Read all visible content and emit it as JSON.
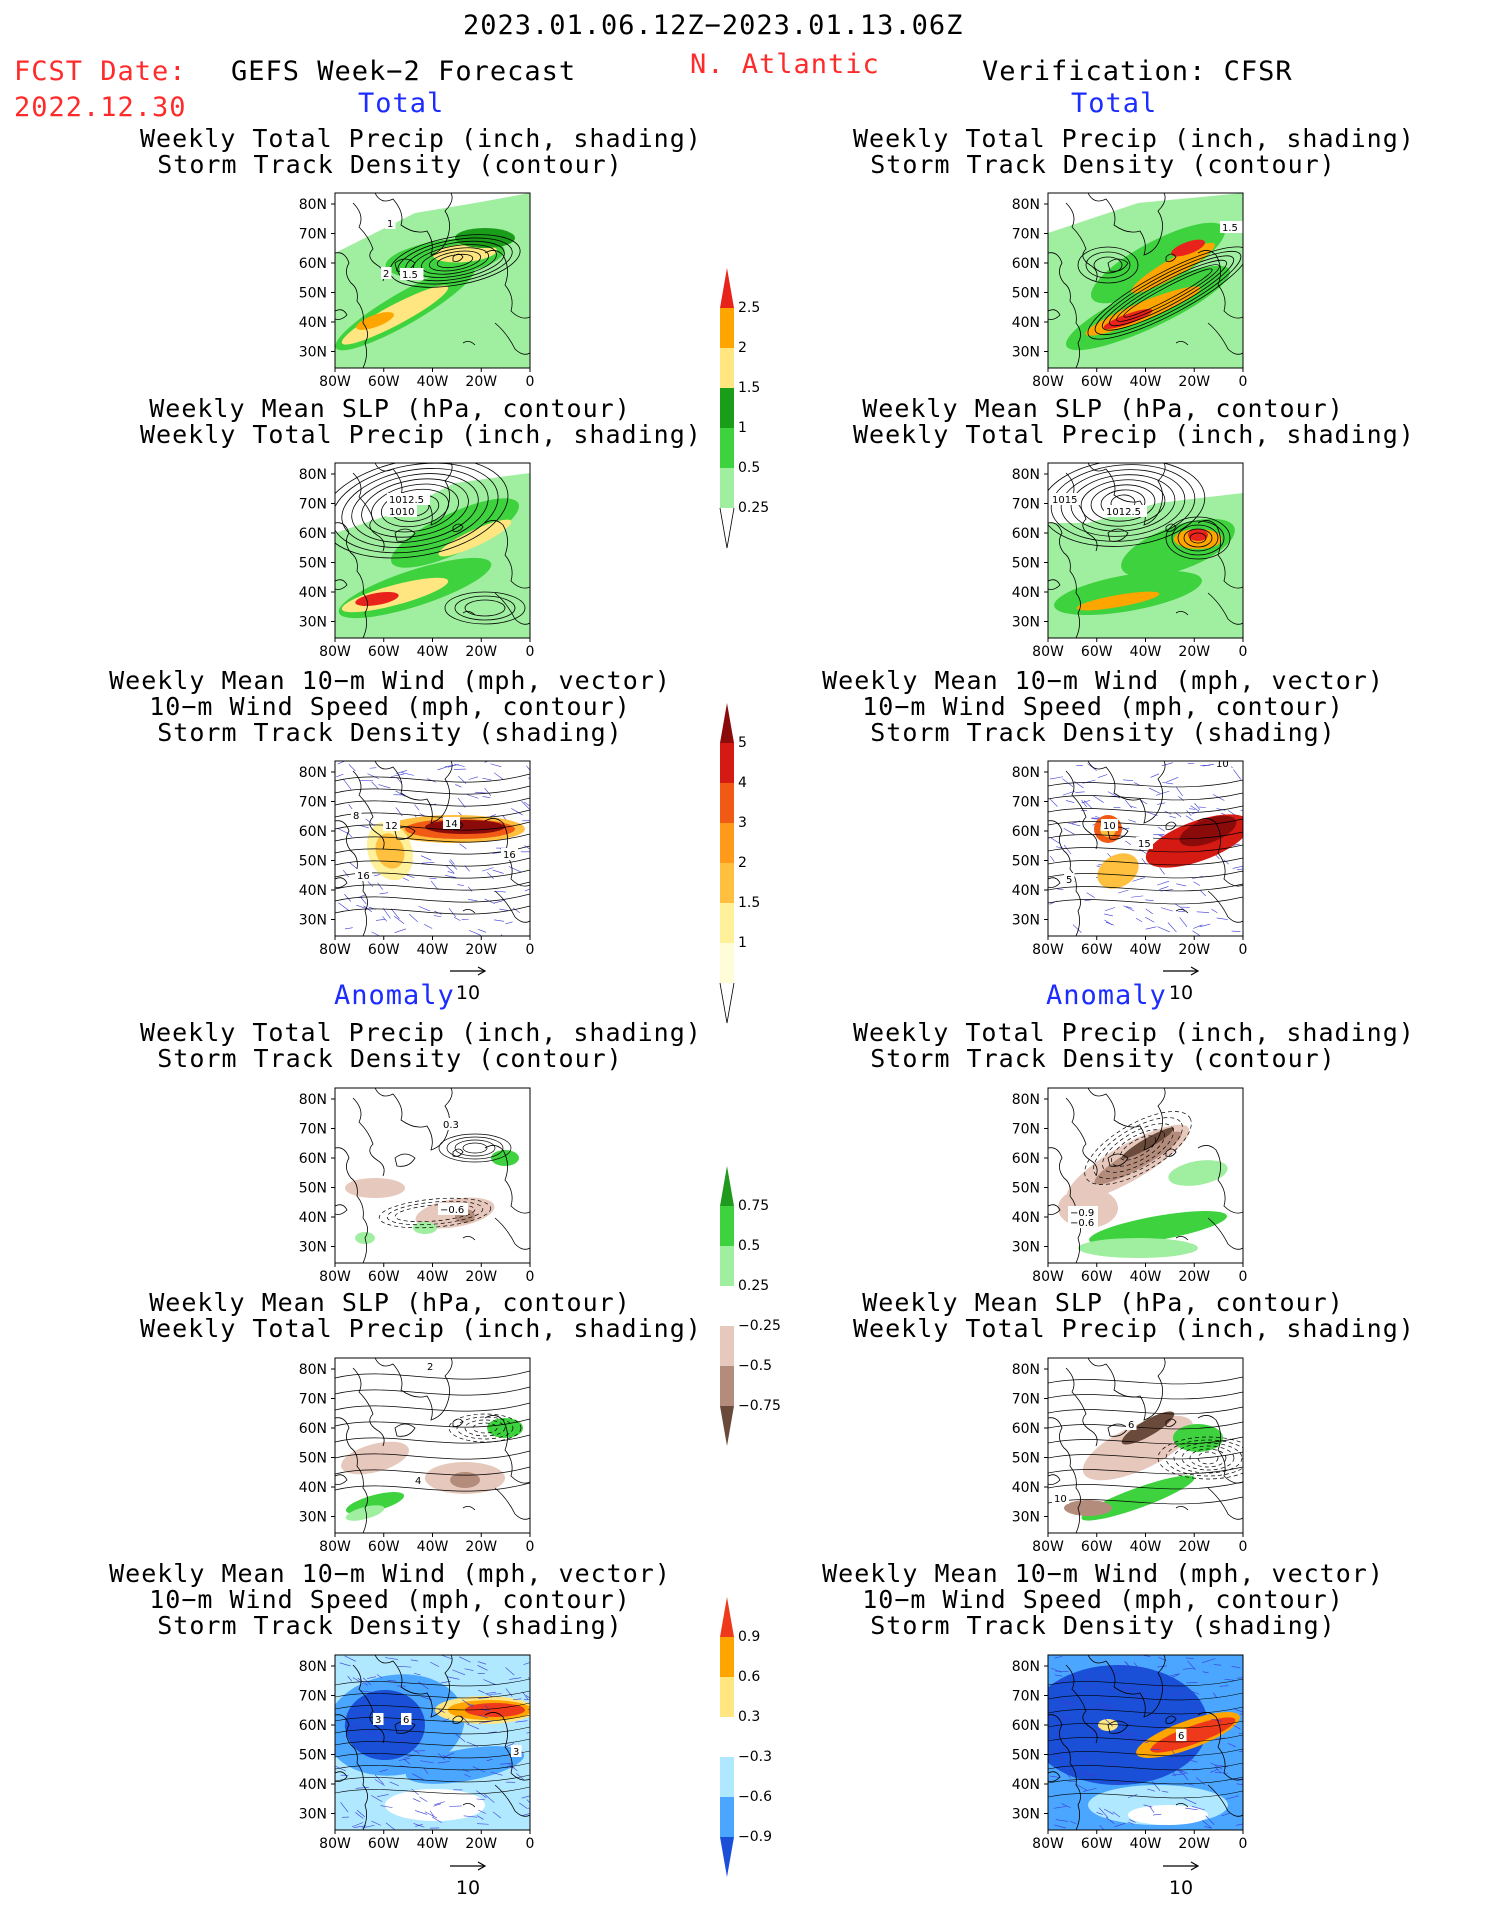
{
  "header": {
    "date_range": "2023.01.06.12Z−2023.01.13.06Z",
    "fcst_label": "FCST Date:",
    "fcst_date": "2022.12.30",
    "forecast_title": "GEFS Week−2 Forecast",
    "region": "N. Atlantic",
    "verification": "Verification: CFSR"
  },
  "sections": {
    "total_left": "Total",
    "total_right": "Total",
    "anom_left": "Anomaly",
    "anom_right": "Anomaly"
  },
  "titles": {
    "precip_track": "Weekly Total Precip (inch, shading)\nStorm Track Density (contour)",
    "slp_precip": "Weekly Mean SLP (hPa, contour)\nWeekly Total Precip (inch, shading)",
    "wind_track": "Weekly Mean 10−m Wind (mph, vector)\n10−m Wind Speed (mph, contour)\nStorm Track Density (shading)"
  },
  "axes": {
    "lat": [
      "80N",
      "70N",
      "60N",
      "50N",
      "40N",
      "30N"
    ],
    "lon": [
      "80W",
      "60W",
      "40W",
      "20W",
      "0"
    ]
  },
  "vector_ref": "10",
  "contour_labels": {
    "p1": [
      "1",
      "2",
      "1.5"
    ],
    "p2": [
      "1.5"
    ],
    "p3": [
      "1012.5",
      "1010"
    ],
    "p4": [
      "1015",
      "1012.5"
    ],
    "p5": [
      "8",
      "12",
      "14",
      "16",
      "16"
    ],
    "p6": [
      "10",
      "10",
      "15",
      "5"
    ],
    "p7": [
      "0.3",
      "−0.6"
    ],
    "p8": [
      "−0.9",
      "−0.6"
    ],
    "p9": [
      "2",
      "4"
    ],
    "p10": [
      "6",
      "10"
    ],
    "p11": [
      "3",
      "6",
      "3"
    ],
    "p12": [
      "6"
    ]
  },
  "colorbars": {
    "precip_total": {
      "labels": [
        "2.5",
        "2",
        "1.5",
        "1",
        "0.5",
        "0.25"
      ],
      "colors": [
        "#e8231b",
        "#ffa500",
        "#ffe680",
        "#1a9e1a",
        "#3ed23e",
        "#a0eea0"
      ]
    },
    "track_total": {
      "labels": [
        "5",
        "4",
        "3",
        "2",
        "1.5",
        "1"
      ],
      "colors": [
        "#8b0a0a",
        "#d41a12",
        "#f05a14",
        "#ff9a1a",
        "#ffc040",
        "#fff09a",
        "#fffcd8"
      ]
    },
    "precip_anom": {
      "labels": [
        "0.75",
        "0.5",
        "0.25",
        "−0.25",
        "−0.5",
        "−0.75"
      ],
      "colors": [
        "#1f9a1f",
        "#3ed23e",
        "#a0eea0",
        "#ffffff",
        "#e6c8bc",
        "#b48c7c",
        "#6a4a3a"
      ]
    },
    "wind_anom": {
      "labels": [
        "0.9",
        "0.6",
        "0.3",
        "−0.3",
        "−0.6",
        "−0.9"
      ],
      "colors": [
        "#ee3a1a",
        "#ffa500",
        "#ffe680",
        "#ffffff",
        "#b0e8ff",
        "#4aa6ff",
        "#1a50d8"
      ]
    }
  }
}
